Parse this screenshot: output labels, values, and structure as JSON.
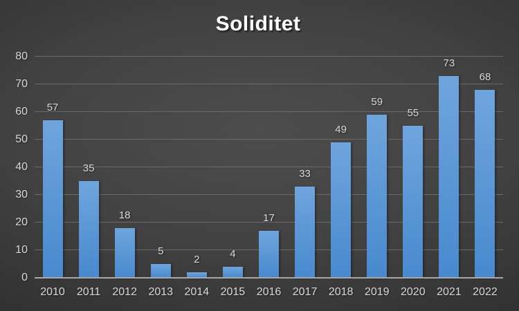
{
  "chart_data": {
    "type": "bar",
    "title": "Soliditet",
    "categories": [
      "2010",
      "2011",
      "2012",
      "2013",
      "2014",
      "2015",
      "2016",
      "2017",
      "2018",
      "2019",
      "2020",
      "2021",
      "2022"
    ],
    "values": [
      57,
      35,
      18,
      5,
      2,
      4,
      17,
      33,
      49,
      59,
      55,
      73,
      68
    ],
    "xlabel": "",
    "ylabel": "",
    "ylim": [
      0,
      80
    ],
    "yticks": [
      0,
      10,
      20,
      30,
      40,
      50,
      60,
      70,
      80
    ],
    "grid": true,
    "legend": false,
    "data_labels": true
  },
  "colors": {
    "bar_fill_top": "#6FA5DD",
    "bar_fill_bottom": "#4889CE",
    "gridline": "#6a6a6a",
    "axis_line": "#a8a8a8",
    "tick_label": "#d9d9d9",
    "data_label": "#d9d9d9",
    "title": "#ffffff",
    "background_center": "#4d4d4d",
    "background_edge": "#232323"
  }
}
